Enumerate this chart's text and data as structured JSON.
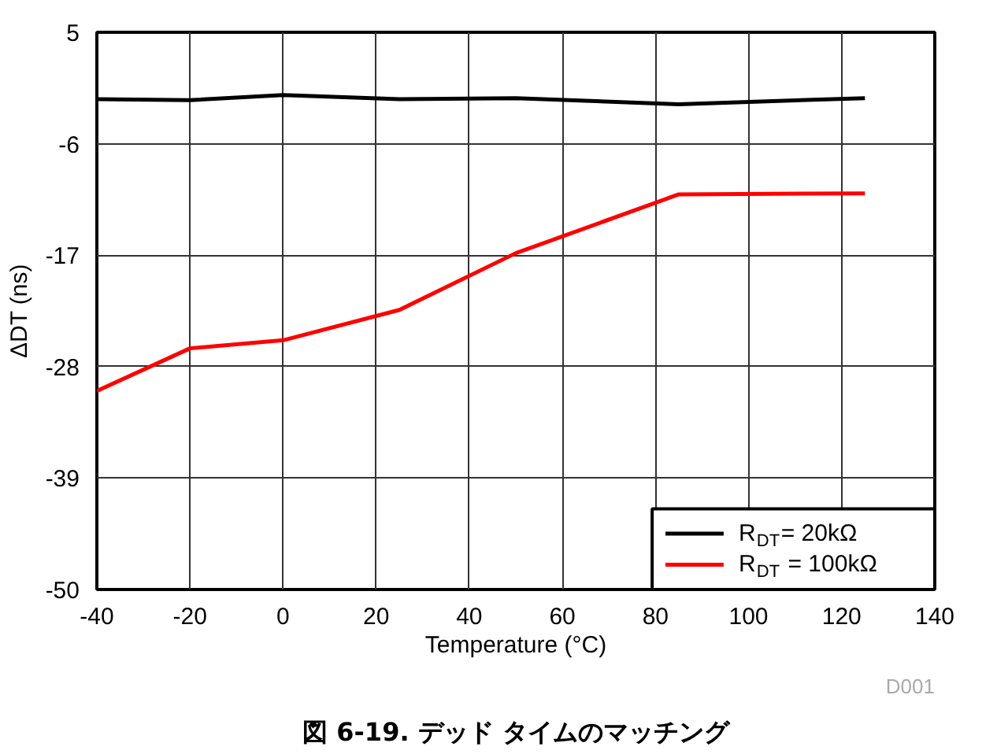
{
  "chart_data": {
    "type": "line",
    "title": "図 6-19. デッド タイムのマッチング",
    "xlabel": "Temperature (°C)",
    "ylabel": "ΔDT (ns)",
    "annotations": [
      "D001"
    ],
    "x": [
      -40,
      -20,
      0,
      25,
      50,
      85,
      125
    ],
    "series": [
      {
        "name": "R$_{DT}$= 20kΩ",
        "color": "#000000",
        "values": [
          -1.6,
          -1.7,
          -1.2,
          -1.6,
          -1.5,
          -2.1,
          -1.5
        ]
      },
      {
        "name": "R$_{DT}$ = 100kΩ",
        "color": "#ff0000",
        "values": [
          -30.4,
          -26.2,
          -25.4,
          -22.4,
          -16.8,
          -11.0,
          -10.9
        ]
      }
    ],
    "xlim": [
      -40,
      140
    ],
    "xticks": [
      -40,
      -20,
      0,
      20,
      40,
      60,
      80,
      100,
      120,
      140
    ],
    "ylim": [
      -50,
      5
    ],
    "yticks": [
      -50,
      -39,
      -28,
      -17,
      -6,
      5
    ],
    "grid": true,
    "legend": "bottom right",
    "marker": "none",
    "line_style": "solid"
  }
}
